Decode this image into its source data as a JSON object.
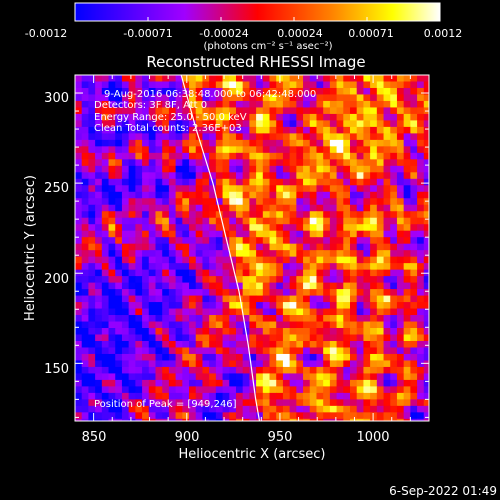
{
  "colorbar": {
    "ticks": [
      "-0.0012",
      "-0.00071",
      "-0.00024",
      "0.00024",
      "0.00071",
      "0.0012"
    ],
    "units_label": "(photons cm⁻² s⁻¹ asec⁻²)"
  },
  "title": "Reconstructed RHESSI Image",
  "annotations": {
    "time_range": "9-Aug-2016 06:38:48.000 to 06:42:48.000",
    "detectors": "Detectors: 3F 8F, Att 0",
    "energy": "Energy Range: 25.0 - 50.0 keV",
    "clean": "Clean    Total counts: 2.36E+03",
    "peak": "Position of Peak = [949,246]"
  },
  "footer_timestamp": "6-Sep-2022 01:49",
  "chart_data": {
    "type": "heatmap",
    "title": "Reconstructed RHESSI Image",
    "xlabel": "Heliocentric X (arcsec)",
    "ylabel": "Heliocentric Y (arcsec)",
    "xlim": [
      840,
      1030
    ],
    "ylim": [
      118,
      310
    ],
    "x_ticks": [
      850,
      900,
      950,
      1000
    ],
    "y_ticks": [
      150,
      200,
      250,
      300
    ],
    "color_range": [
      -0.0012,
      0.0012
    ],
    "colormap": [
      "#0000ff",
      "#a000ff",
      "#ff0000",
      "#ff8000",
      "#ffff00",
      "#ffffff"
    ],
    "peak": [
      949,
      246
    ],
    "limb": [
      [
        897,
        310
      ],
      [
        905,
        280
      ],
      [
        914,
        250
      ],
      [
        921,
        220
      ],
      [
        928,
        190
      ],
      [
        933,
        160
      ],
      [
        937,
        130
      ],
      [
        939,
        118
      ]
    ]
  }
}
